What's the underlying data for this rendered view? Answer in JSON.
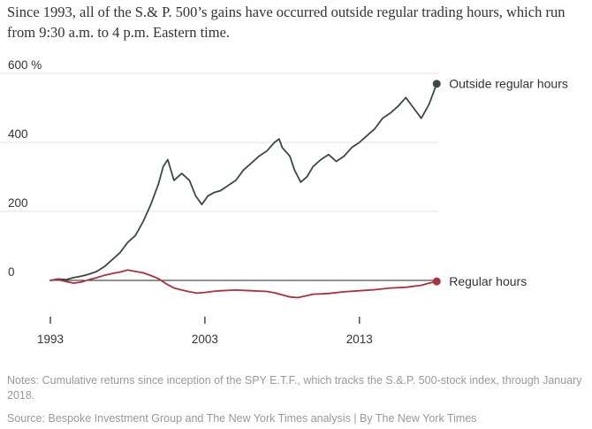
{
  "headline": "Since 1993, all of the S.& P. 500’s gains have occurred outside regular trading hours, which run from 9:30 a.m. to 4 p.m. Eastern time.",
  "notes": "Notes: Cumulative returns since inception of the SPY E.T.F., which tracks the S.&.P. 500-stock index, through January 2018.",
  "source": "Source: Bespoke Investment Group and The New York Times analysis | By The New York Times",
  "colors": {
    "outside": "#3b4a3f",
    "regular": "#a8323e",
    "grid": "#e2e2e2",
    "zero": "#222222",
    "text": "#333333"
  },
  "chart_data": {
    "type": "line",
    "title": "",
    "xlabel": "",
    "ylabel": "",
    "y_unit": "%",
    "xlim": [
      1993.0,
      2018.1
    ],
    "ylim": [
      -60,
      600
    ],
    "y_ticks": [
      0,
      200,
      400,
      600
    ],
    "y_tick_labels": [
      "0",
      "200",
      "400",
      "600 %"
    ],
    "x_ticks": [
      1993,
      2003,
      2013
    ],
    "x_tick_labels": [
      "1993",
      "2003",
      "2013"
    ],
    "grid": true,
    "legend": "direct labels at right end of lines",
    "series": [
      {
        "name": "Outside regular hours",
        "color": "#3b4a3f",
        "x": [
          1993.0,
          1993.5,
          1994.0,
          1994.5,
          1995.0,
          1995.5,
          1996.0,
          1996.5,
          1997.0,
          1997.5,
          1998.0,
          1998.5,
          1999.0,
          1999.5,
          2000.0,
          2000.3,
          2000.6,
          2000.8,
          2001.0,
          2001.5,
          2002.0,
          2002.4,
          2002.8,
          2003.2,
          2003.6,
          2004.0,
          2004.5,
          2005.0,
          2005.5,
          2006.0,
          2006.5,
          2007.0,
          2007.5,
          2007.8,
          2008.0,
          2008.5,
          2008.8,
          2009.2,
          2009.6,
          2010.0,
          2010.5,
          2011.0,
          2011.5,
          2012.0,
          2012.5,
          2013.0,
          2013.5,
          2014.0,
          2014.5,
          2015.0,
          2015.5,
          2016.0,
          2016.5,
          2017.0,
          2017.5,
          2018.0
        ],
        "values": [
          0,
          4,
          2,
          8,
          12,
          18,
          26,
          40,
          60,
          80,
          110,
          130,
          170,
          220,
          280,
          330,
          350,
          320,
          290,
          310,
          290,
          245,
          220,
          245,
          255,
          260,
          275,
          290,
          320,
          340,
          360,
          375,
          400,
          410,
          385,
          360,
          320,
          285,
          300,
          330,
          350,
          365,
          345,
          360,
          385,
          400,
          420,
          440,
          470,
          485,
          505,
          530,
          500,
          470,
          510,
          570
        ]
      },
      {
        "name": "Regular hours",
        "color": "#a8323e",
        "x": [
          1993.0,
          1993.5,
          1994.0,
          1994.5,
          1995.0,
          1995.5,
          1996.0,
          1996.5,
          1997.0,
          1997.5,
          1998.0,
          1998.5,
          1999.0,
          1999.5,
          2000.0,
          2000.5,
          2001.0,
          2001.5,
          2002.0,
          2002.5,
          2003.0,
          2003.5,
          2004.0,
          2005.0,
          2006.0,
          2007.0,
          2007.5,
          2008.0,
          2008.5,
          2009.0,
          2009.5,
          2010.0,
          2011.0,
          2012.0,
          2013.0,
          2014.0,
          2015.0,
          2016.0,
          2017.0,
          2017.5,
          2018.0
        ],
        "values": [
          0,
          2,
          -3,
          -8,
          -5,
          2,
          8,
          15,
          20,
          24,
          30,
          26,
          22,
          14,
          5,
          -10,
          -22,
          -28,
          -33,
          -37,
          -35,
          -32,
          -30,
          -28,
          -30,
          -32,
          -36,
          -42,
          -48,
          -50,
          -45,
          -40,
          -38,
          -33,
          -30,
          -27,
          -22,
          -20,
          -14,
          -8,
          -3
        ]
      }
    ]
  }
}
